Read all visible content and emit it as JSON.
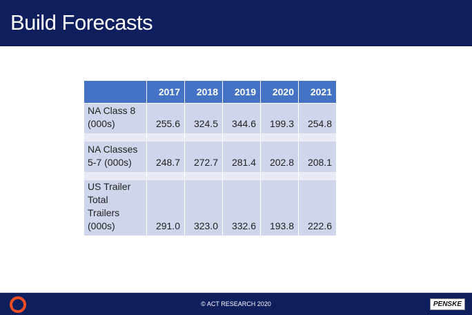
{
  "title": "Build Forecasts",
  "table": {
    "years": [
      "2017",
      "2018",
      "2019",
      "2020",
      "2021"
    ],
    "rows": [
      {
        "label_lines": [
          "NA Class 8",
          "(000s)"
        ],
        "values": [
          "255.6",
          "324.5",
          "344.6",
          "199.3",
          "254.8"
        ]
      },
      {
        "label_lines": [
          "NA Classes",
          "5-7 (000s)"
        ],
        "values": [
          "248.7",
          "272.7",
          "281.4",
          "202.8",
          "208.1"
        ]
      },
      {
        "label_lines": [
          "US Trailer",
          "Total Trailers",
          "(000s)"
        ],
        "values": [
          "291.0",
          "323.0",
          "332.6",
          "193.8",
          "222.6"
        ]
      }
    ]
  },
  "footer": {
    "copyright": "© ACT RESEARCH 2020",
    "brand": "PENSKE"
  }
}
